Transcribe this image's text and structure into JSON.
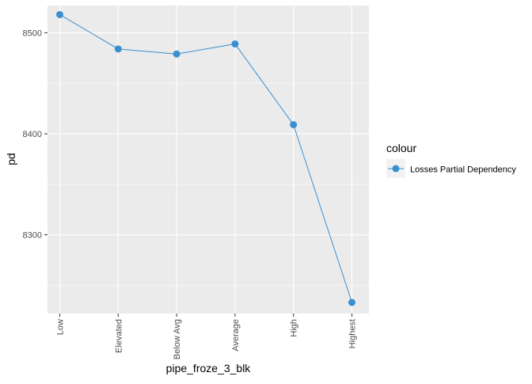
{
  "chart_data": {
    "type": "line",
    "categories": [
      "Low",
      "Elevated",
      "Below Avg",
      "Average",
      "High",
      "Highest"
    ],
    "series": [
      {
        "name": "Losses Partial Dependency",
        "values": [
          8518,
          8484,
          8479,
          8489,
          8409,
          8233
        ],
        "color": "#3a8fd0"
      }
    ],
    "xlabel": "pipe_froze_3_blk",
    "ylabel": "pd",
    "yticks": [
      8300,
      8400,
      8500
    ],
    "ylim": [
      8222,
      8527
    ],
    "grid": true,
    "panel_background": "#ebebeb",
    "grid_color": "#ffffff",
    "legend": {
      "title": "colour",
      "position": "right"
    }
  }
}
